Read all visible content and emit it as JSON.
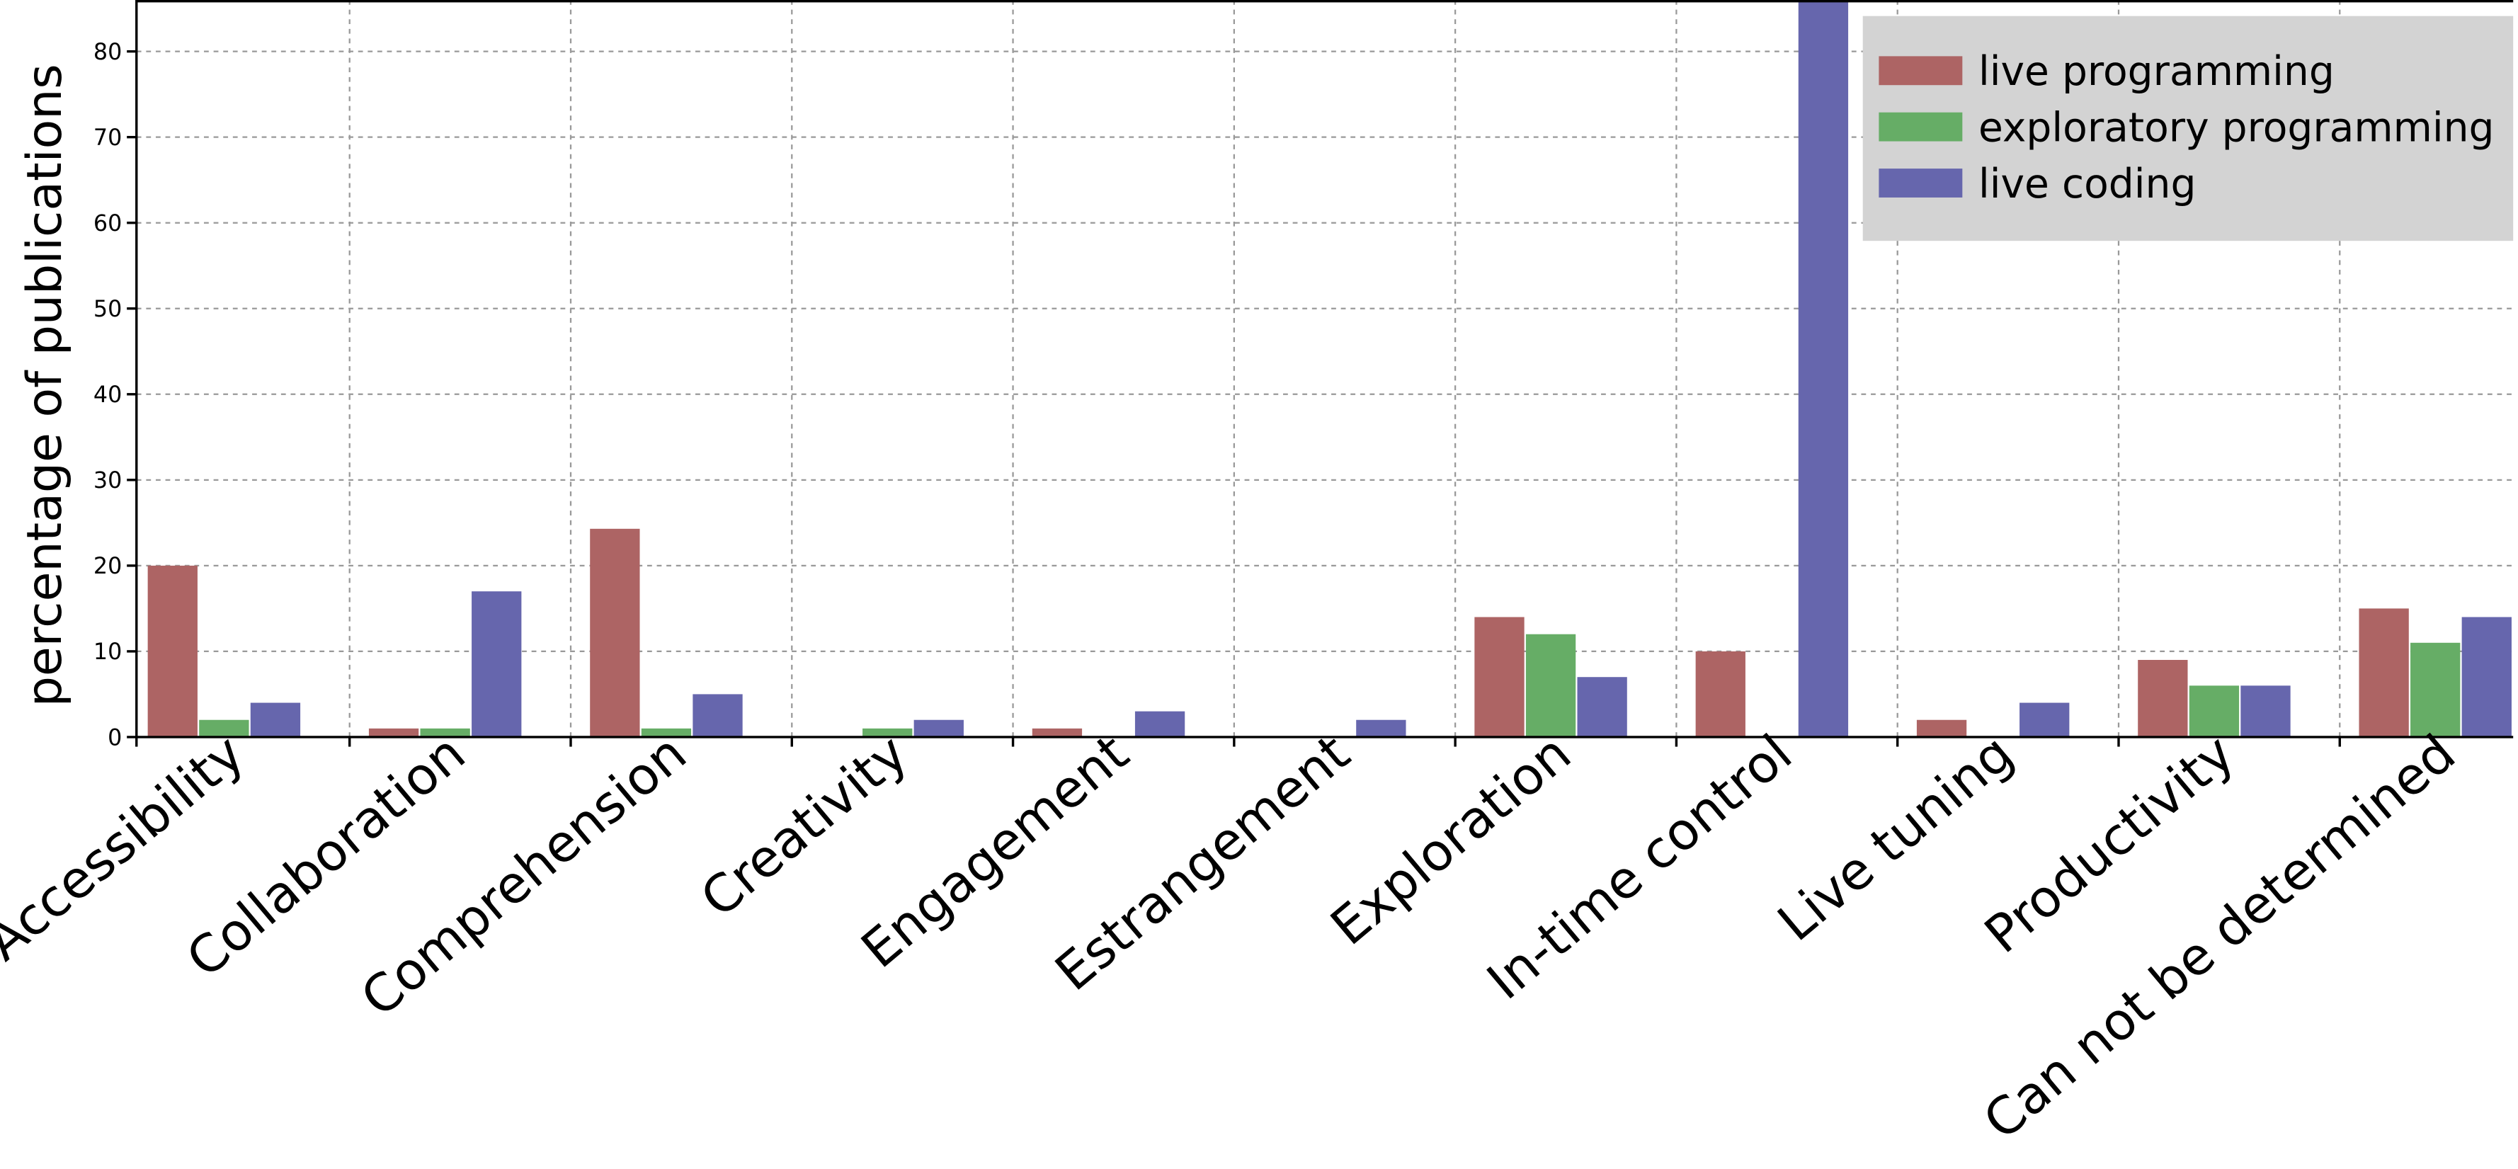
{
  "chart_data": {
    "type": "bar",
    "ylabel": "percentage of publications",
    "categories": [
      "Accessibility",
      "Collaboration",
      "Comprehension",
      "Creativity",
      "Engagement",
      "Estrangement",
      "Exploration",
      "In-time control",
      "Live tuning",
      "Productivity",
      "Can not be determined"
    ],
    "series": [
      {
        "name": "live programming",
        "color": "#ad6464",
        "values": [
          20,
          1,
          24.3,
          0,
          1,
          0,
          14,
          10,
          2,
          9,
          15
        ]
      },
      {
        "name": "exploratory programming",
        "color": "#66ad66",
        "values": [
          2,
          1,
          1,
          1,
          0,
          0,
          12,
          0,
          0,
          6,
          11
        ]
      },
      {
        "name": "live coding",
        "color": "#6666ad",
        "values": [
          4,
          17,
          5,
          2,
          3,
          2,
          7,
          86,
          4,
          6,
          14
        ]
      }
    ],
    "ylim": [
      0,
      86
    ],
    "yticks": [
      0,
      10,
      20,
      30,
      40,
      50,
      60,
      70,
      80
    ],
    "grid": true,
    "legend": "upper right"
  }
}
